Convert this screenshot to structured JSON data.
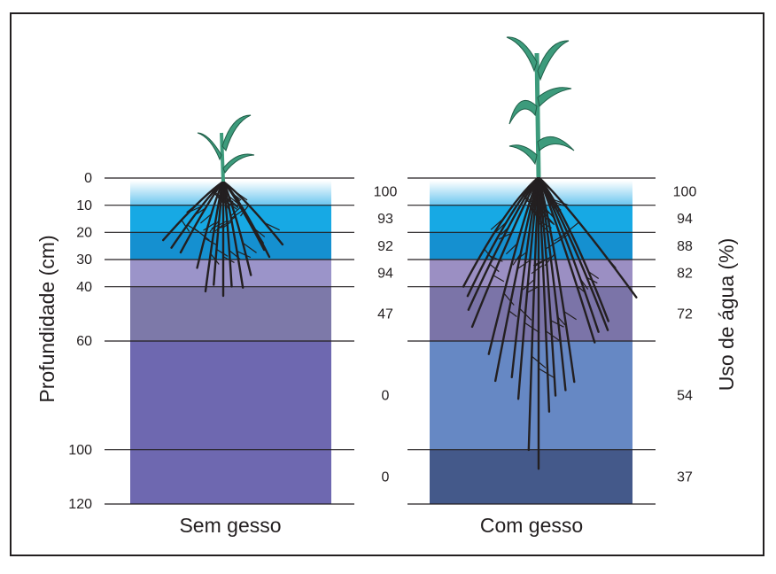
{
  "axis": {
    "y_label": "Profundidade (cm)",
    "y2_label": "Uso de água (%)",
    "ticks": [
      0,
      10,
      20,
      30,
      40,
      60,
      100,
      120
    ]
  },
  "columns": [
    {
      "label": "Sem gesso",
      "water_use": [
        100,
        93,
        92,
        94,
        47,
        0,
        0
      ]
    },
    {
      "label": "Com gesso",
      "water_use": [
        100,
        94,
        88,
        82,
        72,
        54,
        37
      ]
    }
  ]
}
